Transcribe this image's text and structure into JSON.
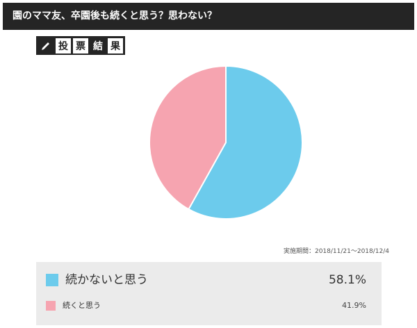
{
  "title": "園のママ友、卒園後も続くと思う？思わない？",
  "badge": {
    "chars": [
      "投",
      "票",
      "結",
      "果"
    ]
  },
  "period": "実施期間：2018/11/21～2018/12/4",
  "colors": {
    "blue": "#6ccbec",
    "pink": "#f6a4b0",
    "dark": "#252525"
  },
  "chart_data": {
    "type": "pie",
    "series": [
      {
        "name": "続かないと思う",
        "value": 58.1,
        "label": "58.1%",
        "color": "#6ccbec"
      },
      {
        "name": "続くと思う",
        "value": 41.9,
        "label": "41.9%",
        "color": "#f6a4b0"
      }
    ]
  }
}
